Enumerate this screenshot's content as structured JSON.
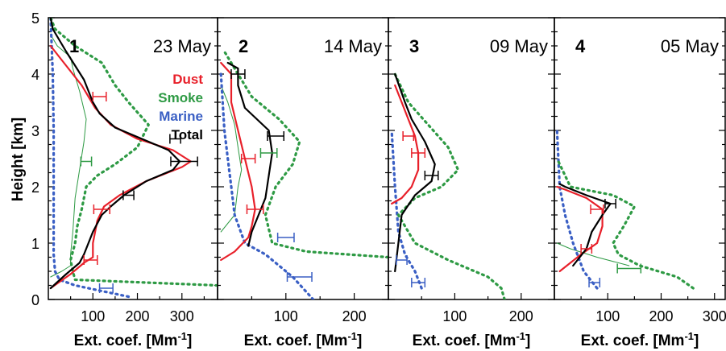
{
  "chart_data": {
    "type": "line",
    "ylabel": "Height [km]",
    "ylim": [
      0,
      5
    ],
    "yticks": [
      "0",
      "1",
      "2",
      "3",
      "4",
      "5"
    ],
    "xlabel_main": "Ext. coef. [Mm",
    "xlabel_sup": "-1",
    "xlabel_end": "]",
    "legend": [
      {
        "name": "Dust",
        "color": "#e8202a",
        "style": "solid"
      },
      {
        "name": "Smoke",
        "color": "#2e9a44",
        "style": "dotted"
      },
      {
        "name": "Marine",
        "color": "#3a5fc4",
        "style": "dotted"
      },
      {
        "name": "Total",
        "color": "#000000",
        "style": "solid"
      }
    ],
    "panels": [
      {
        "number": "1",
        "date": "23 May",
        "xlim": [
          0,
          380
        ],
        "xticks": [
          100,
          200,
          300
        ],
        "xtick_labels": [
          "100",
          "200",
          "300"
        ],
        "series": {
          "dust": [
            [
              5,
              0.2
            ],
            [
              50,
              0.45
            ],
            [
              80,
              0.65
            ],
            [
              100,
              0.75
            ],
            [
              100,
              1.0
            ],
            [
              110,
              1.4
            ],
            [
              125,
              1.65
            ],
            [
              160,
              1.85
            ],
            [
              220,
              2.1
            ],
            [
              300,
              2.35
            ],
            [
              320,
              2.45
            ],
            [
              280,
              2.65
            ],
            [
              200,
              2.85
            ],
            [
              140,
              3.1
            ],
            [
              105,
              3.4
            ],
            [
              75,
              3.8
            ],
            [
              25,
              4.3
            ],
            [
              5,
              4.5
            ]
          ],
          "total": [
            [
              5,
              0.2
            ],
            [
              40,
              0.45
            ],
            [
              70,
              0.65
            ],
            [
              80,
              0.8
            ],
            [
              100,
              1.2
            ],
            [
              120,
              1.5
            ],
            [
              140,
              1.65
            ],
            [
              170,
              1.85
            ],
            [
              220,
              2.1
            ],
            [
              280,
              2.3
            ],
            [
              295,
              2.45
            ],
            [
              270,
              2.65
            ],
            [
              210,
              2.85
            ],
            [
              150,
              3.05
            ],
            [
              115,
              3.3
            ],
            [
              100,
              3.5
            ],
            [
              80,
              3.9
            ],
            [
              40,
              4.4
            ],
            [
              10,
              4.8
            ],
            [
              5,
              5.0
            ]
          ],
          "smoke": [
            [
              380,
              0.25
            ],
            [
              60,
              0.35
            ],
            [
              55,
              0.5
            ],
            [
              50,
              0.7
            ],
            [
              60,
              1.0
            ],
            [
              65,
              1.3
            ],
            [
              75,
              1.6
            ],
            [
              85,
              2.0
            ],
            [
              110,
              2.2
            ],
            [
              150,
              2.4
            ],
            [
              200,
              2.7
            ],
            [
              225,
              3.1
            ],
            [
              180,
              3.5
            ],
            [
              150,
              3.8
            ],
            [
              120,
              4.2
            ],
            [
              60,
              4.5
            ],
            [
              15,
              4.8
            ],
            [
              5,
              5.0
            ]
          ],
          "marine": [
            [
              180,
              0.05
            ],
            [
              120,
              0.15
            ],
            [
              60,
              0.25
            ],
            [
              25,
              0.35
            ],
            [
              15,
              0.5
            ],
            [
              12,
              0.8
            ],
            [
              12,
              1.5
            ],
            [
              12,
              3.0
            ],
            [
              10,
              4.0
            ],
            [
              5,
              5.0
            ]
          ],
          "smoke_a": [
            [
              5,
              0.4
            ],
            [
              30,
              0.5
            ],
            [
              50,
              0.6
            ],
            [
              50,
              0.8
            ],
            [
              55,
              1.2
            ],
            [
              60,
              1.8
            ],
            [
              70,
              2.3
            ],
            [
              80,
              2.8
            ],
            [
              85,
              3.2
            ],
            [
              70,
              3.7
            ],
            [
              55,
              4.1
            ],
            [
              50,
              4.3
            ],
            [
              20,
              4.5
            ],
            [
              5,
              4.7
            ]
          ]
        },
        "errorbars": [
          {
            "series": "total",
            "x": 305,
            "y": 2.45,
            "dx": 30
          },
          {
            "series": "dust",
            "x": 120,
            "y": 1.6,
            "dx": 18
          },
          {
            "series": "dust",
            "x": 115,
            "y": 3.6,
            "dx": 15
          },
          {
            "series": "dust",
            "x": 95,
            "y": 0.7,
            "dx": 15
          },
          {
            "series": "total",
            "x": 180,
            "y": 1.85,
            "dx": 12
          },
          {
            "series": "total",
            "x": 285,
            "y": 2.85,
            "dx": 12
          },
          {
            "series": "smoke",
            "x": 85,
            "y": 2.45,
            "dx": 12
          },
          {
            "series": "marine",
            "x": 130,
            "y": 0.2,
            "dx": 15
          }
        ]
      },
      {
        "number": "2",
        "date": "14 May",
        "xlim": [
          0,
          250
        ],
        "xticks": [
          100,
          200
        ],
        "xtick_labels": [
          "100",
          "200"
        ],
        "series": {
          "dust": [
            [
              5,
              0.7
            ],
            [
              25,
              0.85
            ],
            [
              45,
              1.1
            ],
            [
              50,
              1.3
            ],
            [
              55,
              1.6
            ],
            [
              50,
              2.0
            ],
            [
              40,
              2.5
            ],
            [
              30,
              3.0
            ],
            [
              20,
              3.5
            ],
            [
              20,
              4.0
            ],
            [
              5,
              4.2
            ]
          ],
          "total": [
            [
              45,
              0.95
            ],
            [
              50,
              1.2
            ],
            [
              60,
              1.5
            ],
            [
              70,
              1.8
            ],
            [
              75,
              2.2
            ],
            [
              80,
              2.6
            ],
            [
              75,
              3.0
            ],
            [
              40,
              3.4
            ],
            [
              30,
              3.8
            ],
            [
              30,
              4.1
            ],
            [
              15,
              4.2
            ]
          ],
          "smoke": [
            [
              250,
              0.75
            ],
            [
              130,
              0.85
            ],
            [
              80,
              1.0
            ],
            [
              70,
              1.5
            ],
            [
              85,
              2.0
            ],
            [
              110,
              2.4
            ],
            [
              120,
              2.8
            ],
            [
              90,
              3.2
            ],
            [
              50,
              3.6
            ],
            [
              30,
              4.0
            ],
            [
              10,
              4.4
            ]
          ],
          "marine": [
            [
              140,
              0.0
            ],
            [
              110,
              0.4
            ],
            [
              70,
              0.8
            ],
            [
              40,
              1.0
            ],
            [
              25,
              1.5
            ],
            [
              20,
              2.0
            ],
            [
              15,
              2.5
            ],
            [
              10,
              3.0
            ],
            [
              5,
              4.0
            ]
          ],
          "smoke_a": [
            [
              5,
              1.2
            ],
            [
              25,
              1.5
            ],
            [
              30,
              2.0
            ],
            [
              35,
              2.3
            ],
            [
              30,
              2.7
            ],
            [
              25,
              3.1
            ],
            [
              15,
              3.5
            ],
            [
              5,
              3.8
            ]
          ]
        },
        "errorbars": [
          {
            "series": "total",
            "x": 85,
            "y": 2.9,
            "dx": 12
          },
          {
            "series": "smoke",
            "x": 75,
            "y": 2.6,
            "dx": 12
          },
          {
            "series": "dust",
            "x": 55,
            "y": 1.6,
            "dx": 12
          },
          {
            "series": "dust",
            "x": 45,
            "y": 2.5,
            "dx": 10
          },
          {
            "series": "marine",
            "x": 100,
            "y": 1.1,
            "dx": 12
          },
          {
            "series": "marine",
            "x": 120,
            "y": 0.4,
            "dx": 18
          },
          {
            "series": "total",
            "x": 30,
            "y": 4.0,
            "dx": 10
          }
        ]
      },
      {
        "number": "3",
        "date": "09 May",
        "xlim": [
          0,
          250
        ],
        "xticks": [
          100,
          200
        ],
        "xtick_labels": [
          "100",
          "200"
        ],
        "series": {
          "dust": [
            [
              5,
              1.7
            ],
            [
              20,
              1.8
            ],
            [
              35,
              2.0
            ],
            [
              45,
              2.3
            ],
            [
              45,
              2.6
            ],
            [
              40,
              2.9
            ],
            [
              30,
              3.2
            ],
            [
              20,
              3.5
            ],
            [
              10,
              3.8
            ]
          ],
          "total": [
            [
              10,
              0.5
            ],
            [
              15,
              1.0
            ],
            [
              20,
              1.5
            ],
            [
              40,
              1.85
            ],
            [
              65,
              2.1
            ],
            [
              70,
              2.4
            ],
            [
              55,
              2.8
            ],
            [
              35,
              3.2
            ],
            [
              25,
              3.5
            ],
            [
              10,
              4.0
            ]
          ],
          "smoke": [
            [
              175,
              0.0
            ],
            [
              170,
              0.2
            ],
            [
              150,
              0.4
            ],
            [
              90,
              0.7
            ],
            [
              40,
              1.0
            ],
            [
              15,
              1.5
            ],
            [
              40,
              1.8
            ],
            [
              80,
              2.0
            ],
            [
              105,
              2.3
            ],
            [
              90,
              2.7
            ],
            [
              60,
              3.1
            ],
            [
              30,
              3.5
            ],
            [
              10,
              4.0
            ]
          ],
          "marine": [
            [
              50,
              0.2
            ],
            [
              40,
              0.5
            ],
            [
              25,
              0.8
            ],
            [
              15,
              1.2
            ],
            [
              10,
              2.0
            ],
            [
              5,
              3.0
            ]
          ]
        },
        "errorbars": [
          {
            "series": "total",
            "x": 65,
            "y": 2.2,
            "dx": 10
          },
          {
            "series": "dust",
            "x": 45,
            "y": 2.6,
            "dx": 10
          },
          {
            "series": "dust",
            "x": 30,
            "y": 2.9,
            "dx": 8
          },
          {
            "series": "marine",
            "x": 45,
            "y": 0.3,
            "dx": 10
          },
          {
            "series": "marine",
            "x": 20,
            "y": 0.7,
            "dx": 8
          }
        ]
      },
      {
        "number": "4",
        "date": "05 May",
        "xlim": [
          0,
          320
        ],
        "xticks": [
          100,
          200,
          300
        ],
        "xtick_labels": [
          "100",
          "200",
          "300"
        ],
        "series": {
          "dust": [
            [
              10,
              0.5
            ],
            [
              50,
              0.8
            ],
            [
              80,
              1.0
            ],
            [
              90,
              1.3
            ],
            [
              90,
              1.6
            ],
            [
              60,
              1.8
            ],
            [
              20,
              1.95
            ],
            [
              5,
              2.0
            ]
          ],
          "total": [
            [
              35,
              0.6
            ],
            [
              60,
              0.9
            ],
            [
              70,
              1.2
            ],
            [
              90,
              1.5
            ],
            [
              105,
              1.7
            ],
            [
              60,
              1.85
            ],
            [
              20,
              2.0
            ],
            [
              10,
              2.05
            ]
          ],
          "smoke": [
            [
              260,
              0.2
            ],
            [
              230,
              0.4
            ],
            [
              160,
              0.6
            ],
            [
              120,
              0.8
            ],
            [
              110,
              1.0
            ],
            [
              130,
              1.3
            ],
            [
              150,
              1.65
            ],
            [
              110,
              1.85
            ],
            [
              30,
              2.0
            ],
            [
              5,
              2.5
            ]
          ],
          "marine": [
            [
              80,
              0.2
            ],
            [
              55,
              0.5
            ],
            [
              35,
              1.0
            ],
            [
              20,
              1.5
            ],
            [
              10,
              2.0
            ],
            [
              5,
              3.0
            ]
          ],
          "smoke_a": [
            [
              140,
              0.6
            ],
            [
              80,
              0.75
            ],
            [
              30,
              0.9
            ],
            [
              5,
              1.0
            ]
          ]
        },
        "errorbars": [
          {
            "series": "total",
            "x": 105,
            "y": 1.7,
            "dx": 10
          },
          {
            "series": "smoke",
            "x": 140,
            "y": 0.55,
            "dx": 22
          },
          {
            "series": "dust",
            "x": 80,
            "y": 1.6,
            "dx": 12
          },
          {
            "series": "dust",
            "x": 60,
            "y": 0.9,
            "dx": 10
          },
          {
            "series": "marine",
            "x": 75,
            "y": 0.3,
            "dx": 10
          }
        ]
      }
    ]
  }
}
